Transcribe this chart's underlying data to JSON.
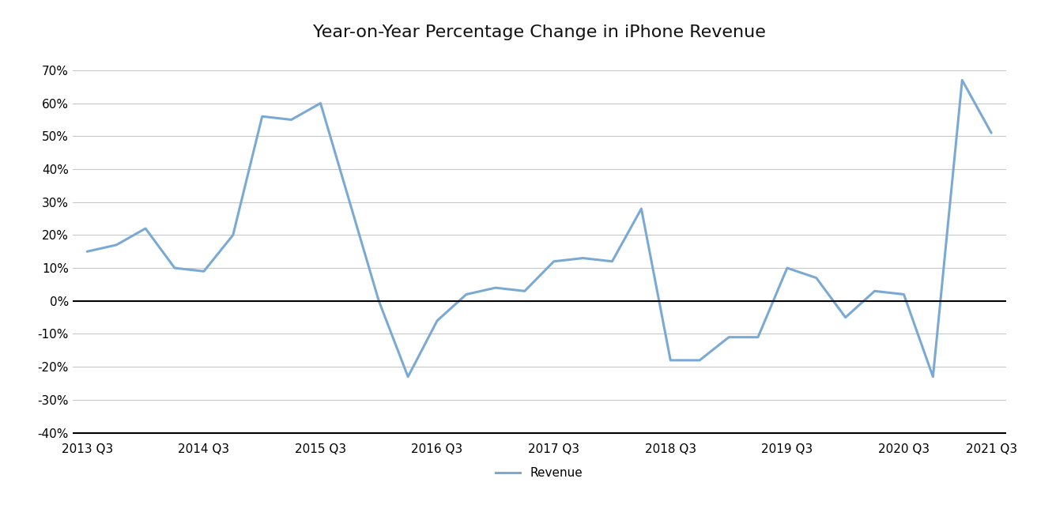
{
  "title": "Year-on-Year Percentage Change in iPhone Revenue",
  "x_labels": [
    "2013 Q3",
    "2014 Q3",
    "2015 Q3",
    "2016 Q3",
    "2017 Q3",
    "2018 Q3",
    "2019 Q3",
    "2020 Q3",
    "2021 Q3"
  ],
  "y_values": [
    0.15,
    0.17,
    0.22,
    0.1,
    0.09,
    0.2,
    0.56,
    0.55,
    0.6,
    0.3,
    0.0,
    -0.23,
    -0.06,
    0.02,
    0.04,
    0.03,
    0.12,
    0.13,
    0.12,
    0.28,
    -0.18,
    -0.18,
    -0.11,
    -0.11,
    0.1,
    0.07,
    -0.05,
    0.03,
    0.02,
    -0.23,
    0.67,
    0.51
  ],
  "line_color": "#7aaad4",
  "zero_line_color": "#000000",
  "background_color": "#ffffff",
  "grid_color": "#c8c8c8",
  "legend_label": "Revenue",
  "ylim": [
    -0.42,
    0.76
  ],
  "yticks": [
    -0.4,
    -0.3,
    -0.2,
    -0.1,
    0.0,
    0.1,
    0.2,
    0.3,
    0.4,
    0.5,
    0.6,
    0.7
  ],
  "title_fontsize": 16,
  "tick_fontsize": 11,
  "legend_fontsize": 11,
  "linewidth": 2.2
}
